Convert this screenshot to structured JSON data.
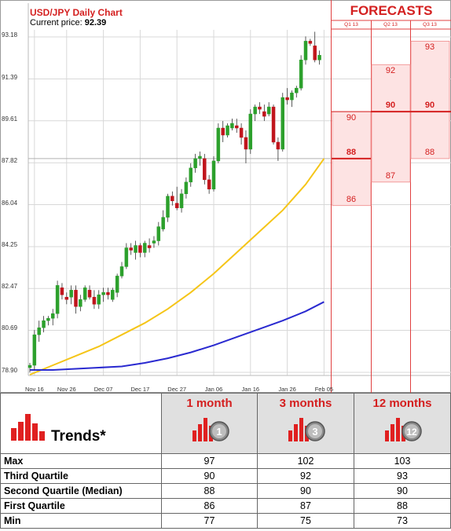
{
  "chart_data": {
    "type": "candlestick",
    "title": "USD/JPY Daily Chart",
    "price_label": "Current price:",
    "current_price": "92.39",
    "y_ticks": [
      "93.18",
      "91.39",
      "89.61",
      "87.82",
      "86.04",
      "84.25",
      "82.47",
      "80.69",
      "78.90"
    ],
    "y_tick_values": [
      93.18,
      91.39,
      89.61,
      87.82,
      86.04,
      84.25,
      82.47,
      80.69,
      78.9
    ],
    "ylim": [
      78.3,
      93.7
    ],
    "x_ticks": [
      "Nov 16",
      "Nov 26",
      "Dec 07",
      "Dec 17",
      "Dec 27",
      "Jan 06",
      "Jan 16",
      "Jan 26",
      "Feb 05"
    ],
    "x_tick_index": [
      1,
      8,
      16,
      24,
      32,
      40,
      48,
      56,
      64
    ],
    "candles": [
      {
        "o": 79.1,
        "h": 79.3,
        "l": 78.9,
        "c": 79.2
      },
      {
        "o": 79.2,
        "h": 80.7,
        "l": 79.0,
        "c": 80.5
      },
      {
        "o": 80.5,
        "h": 81.1,
        "l": 80.2,
        "c": 80.8
      },
      {
        "o": 80.8,
        "h": 81.3,
        "l": 80.6,
        "c": 81.1
      },
      {
        "o": 81.1,
        "h": 81.3,
        "l": 80.9,
        "c": 81.2
      },
      {
        "o": 81.2,
        "h": 81.6,
        "l": 80.9,
        "c": 81.4
      },
      {
        "o": 81.4,
        "h": 82.8,
        "l": 81.2,
        "c": 82.6
      },
      {
        "o": 82.5,
        "h": 82.7,
        "l": 82.0,
        "c": 82.2
      },
      {
        "o": 82.1,
        "h": 82.3,
        "l": 81.8,
        "c": 82.0
      },
      {
        "o": 82.1,
        "h": 82.6,
        "l": 81.8,
        "c": 82.4
      },
      {
        "o": 82.4,
        "h": 82.6,
        "l": 81.4,
        "c": 81.7
      },
      {
        "o": 81.7,
        "h": 82.2,
        "l": 81.5,
        "c": 82.0
      },
      {
        "o": 82.0,
        "h": 82.6,
        "l": 81.9,
        "c": 82.5
      },
      {
        "o": 82.4,
        "h": 82.6,
        "l": 82.0,
        "c": 82.1
      },
      {
        "o": 82.1,
        "h": 82.4,
        "l": 81.6,
        "c": 81.8
      },
      {
        "o": 81.8,
        "h": 82.4,
        "l": 81.6,
        "c": 82.2
      },
      {
        "o": 82.2,
        "h": 82.5,
        "l": 81.9,
        "c": 82.3
      },
      {
        "o": 82.3,
        "h": 82.5,
        "l": 82.0,
        "c": 82.2
      },
      {
        "o": 82.0,
        "h": 82.5,
        "l": 81.9,
        "c": 82.4
      },
      {
        "o": 82.3,
        "h": 83.1,
        "l": 82.1,
        "c": 83.0
      },
      {
        "o": 83.0,
        "h": 83.6,
        "l": 82.9,
        "c": 83.4
      },
      {
        "o": 83.4,
        "h": 84.4,
        "l": 83.3,
        "c": 84.2
      },
      {
        "o": 84.2,
        "h": 84.4,
        "l": 83.9,
        "c": 84.1
      },
      {
        "o": 84.0,
        "h": 84.5,
        "l": 83.7,
        "c": 84.3
      },
      {
        "o": 84.3,
        "h": 84.4,
        "l": 83.8,
        "c": 84.0
      },
      {
        "o": 84.0,
        "h": 84.5,
        "l": 83.8,
        "c": 84.4
      },
      {
        "o": 84.3,
        "h": 84.6,
        "l": 84.0,
        "c": 84.2
      },
      {
        "o": 84.4,
        "h": 84.7,
        "l": 84.2,
        "c": 84.5
      },
      {
        "o": 84.5,
        "h": 85.3,
        "l": 84.3,
        "c": 85.1
      },
      {
        "o": 85.0,
        "h": 85.8,
        "l": 84.9,
        "c": 85.5
      },
      {
        "o": 85.5,
        "h": 86.5,
        "l": 85.3,
        "c": 86.4
      },
      {
        "o": 86.4,
        "h": 86.6,
        "l": 86.0,
        "c": 86.2
      },
      {
        "o": 86.1,
        "h": 86.8,
        "l": 85.8,
        "c": 85.9
      },
      {
        "o": 85.9,
        "h": 86.7,
        "l": 85.7,
        "c": 86.5
      },
      {
        "o": 86.5,
        "h": 87.2,
        "l": 86.3,
        "c": 87.0
      },
      {
        "o": 87.0,
        "h": 87.8,
        "l": 86.8,
        "c": 87.6
      },
      {
        "o": 87.6,
        "h": 88.2,
        "l": 87.4,
        "c": 88.0
      },
      {
        "o": 88.0,
        "h": 88.3,
        "l": 87.7,
        "c": 88.1
      },
      {
        "o": 88.0,
        "h": 88.2,
        "l": 86.9,
        "c": 87.1
      },
      {
        "o": 87.1,
        "h": 87.3,
        "l": 86.5,
        "c": 86.7
      },
      {
        "o": 86.7,
        "h": 88.1,
        "l": 86.6,
        "c": 87.9
      },
      {
        "o": 87.9,
        "h": 89.5,
        "l": 87.8,
        "c": 89.3
      },
      {
        "o": 89.3,
        "h": 89.6,
        "l": 88.7,
        "c": 89.0
      },
      {
        "o": 89.0,
        "h": 89.5,
        "l": 88.9,
        "c": 89.4
      },
      {
        "o": 89.3,
        "h": 89.7,
        "l": 89.2,
        "c": 89.5
      },
      {
        "o": 89.4,
        "h": 89.7,
        "l": 89.1,
        "c": 89.3
      },
      {
        "o": 89.3,
        "h": 89.5,
        "l": 88.6,
        "c": 88.9
      },
      {
        "o": 88.9,
        "h": 89.2,
        "l": 87.8,
        "c": 88.4
      },
      {
        "o": 88.4,
        "h": 90.1,
        "l": 88.2,
        "c": 89.9
      },
      {
        "o": 89.9,
        "h": 90.3,
        "l": 89.6,
        "c": 90.2
      },
      {
        "o": 90.2,
        "h": 90.4,
        "l": 89.9,
        "c": 90.1
      },
      {
        "o": 90.0,
        "h": 90.3,
        "l": 89.6,
        "c": 89.8
      },
      {
        "o": 89.9,
        "h": 90.4,
        "l": 89.8,
        "c": 90.2
      },
      {
        "o": 90.2,
        "h": 90.3,
        "l": 88.6,
        "c": 88.7
      },
      {
        "o": 88.7,
        "h": 88.9,
        "l": 87.9,
        "c": 88.4
      },
      {
        "o": 88.4,
        "h": 90.8,
        "l": 88.3,
        "c": 90.6
      },
      {
        "o": 90.6,
        "h": 91.0,
        "l": 90.3,
        "c": 90.5
      },
      {
        "o": 90.5,
        "h": 90.9,
        "l": 90.2,
        "c": 90.8
      },
      {
        "o": 90.8,
        "h": 91.1,
        "l": 90.6,
        "c": 91.0
      },
      {
        "o": 91.0,
        "h": 92.4,
        "l": 90.9,
        "c": 92.2
      },
      {
        "o": 92.2,
        "h": 93.2,
        "l": 92.0,
        "c": 93.0
      },
      {
        "o": 93.0,
        "h": 93.1,
        "l": 92.8,
        "c": 92.9
      },
      {
        "o": 92.8,
        "h": 93.4,
        "l": 92.1,
        "c": 92.2
      },
      {
        "o": 92.2,
        "h": 92.6,
        "l": 92.0,
        "c": 92.4
      }
    ],
    "ma_yellow": [
      [
        0,
        78.8
      ],
      [
        5,
        79.2
      ],
      [
        10,
        79.6
      ],
      [
        15,
        80.0
      ],
      [
        20,
        80.5
      ],
      [
        25,
        81.0
      ],
      [
        30,
        81.6
      ],
      [
        35,
        82.3
      ],
      [
        40,
        83.1
      ],
      [
        45,
        84.0
      ],
      [
        50,
        84.9
      ],
      [
        55,
        85.8
      ],
      [
        60,
        86.9
      ],
      [
        64,
        88.0
      ]
    ],
    "ma_blue": [
      [
        0,
        79.0
      ],
      [
        5,
        79.0
      ],
      [
        10,
        79.05
      ],
      [
        15,
        79.1
      ],
      [
        20,
        79.15
      ],
      [
        25,
        79.3
      ],
      [
        30,
        79.5
      ],
      [
        35,
        79.75
      ],
      [
        40,
        80.05
      ],
      [
        45,
        80.4
      ],
      [
        50,
        80.75
      ],
      [
        55,
        81.1
      ],
      [
        60,
        81.5
      ],
      [
        64,
        81.9
      ]
    ],
    "colors": {
      "up": "#2ca02c",
      "down": "#c0151c",
      "ma_yellow": "#f5c518",
      "ma_blue": "#2a2ad0",
      "grid": "#d8d8d8"
    }
  },
  "forecasts": {
    "title": "FORECASTS",
    "color": "#d42020",
    "quarters": [
      {
        "label": "Q1 13",
        "max": 90,
        "median": 88,
        "min": 86,
        "top_label": "90",
        "median_label": "88",
        "bottom_label": "86"
      },
      {
        "label": "Q2 13",
        "max": 92,
        "median": 90,
        "min": 87,
        "top_label": "92",
        "median_label": "90",
        "bottom_label": "87"
      },
      {
        "label": "Q3 13",
        "max": 93,
        "median": 90,
        "min": 88,
        "top_label": "93",
        "median_label": "90",
        "bottom_label": "88"
      }
    ]
  },
  "trends": {
    "label": "Trends*",
    "columns": [
      {
        "label": "1 month",
        "badge": "1"
      },
      {
        "label": "3 months",
        "badge": "3"
      },
      {
        "label": "12 months",
        "badge": "12"
      }
    ],
    "rows": [
      {
        "label": "Max",
        "values": [
          "97",
          "102",
          "103"
        ]
      },
      {
        "label": "Third Quartile",
        "values": [
          "90",
          "92",
          "93"
        ]
      },
      {
        "label": "Second Quartile (Median)",
        "values": [
          "88",
          "90",
          "90"
        ]
      },
      {
        "label": "First Quartile",
        "values": [
          "86",
          "87",
          "88"
        ]
      },
      {
        "label": "Min",
        "values": [
          "77",
          "75",
          "73"
        ]
      }
    ]
  }
}
